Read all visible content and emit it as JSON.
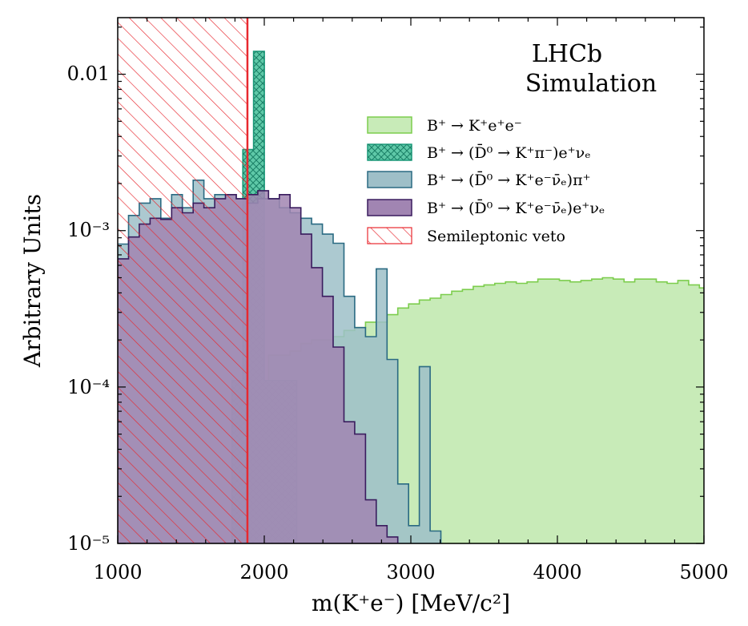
{
  "chart_data": {
    "type": "histogram",
    "xlabel": "m(K⁺e⁻) [MeV/c²]",
    "ylabel": "Arbitrary Units",
    "xlim": [
      1000,
      5000
    ],
    "ylim": [
      1e-05,
      0.023
    ],
    "yscale": "log",
    "x_ticks": [
      1000,
      2000,
      3000,
      4000,
      5000
    ],
    "x_tick_labels": [
      "1000",
      "2000",
      "3000",
      "4000",
      "5000"
    ],
    "y_ticks": [
      1e-05,
      0.0001,
      0.001,
      0.01
    ],
    "y_tick_labels": [
      "10⁻⁵",
      "10⁻⁴",
      "10⁻³",
      "0.01"
    ],
    "annotations": [
      "LHCb",
      "Simulation"
    ],
    "legend_position": "upper right",
    "bin_width": 73.5,
    "series": [
      {
        "name": "B⁺ → K⁺e⁺e⁻",
        "color": "#7ccd4d",
        "fill": "#c8ebb8",
        "bin_start": 1000,
        "values": [
          1e-05,
          1e-05,
          1e-05,
          1e-05,
          1e-05,
          1e-05,
          1e-05,
          1e-05,
          1e-05,
          1e-05,
          1e-05,
          1e-05,
          1e-05,
          1e-05,
          0.00016,
          0.00016,
          0.00017,
          0.00019,
          0.0002,
          0.0002,
          0.00021,
          0.00023,
          0.00024,
          0.00026,
          0.00026,
          0.00029,
          0.00032,
          0.00034,
          0.00036,
          0.00037,
          0.00039,
          0.00041,
          0.00042,
          0.00044,
          0.00045,
          0.00046,
          0.00047,
          0.00046,
          0.00047,
          0.00049,
          0.00049,
          0.00048,
          0.00047,
          0.00048,
          0.00049,
          0.0005,
          0.00049,
          0.00047,
          0.00049,
          0.00049,
          0.00047,
          0.00046,
          0.00048,
          0.00045,
          0.00043,
          0.00041,
          0.00038,
          0.00034,
          0.00031,
          0.00028,
          0.00026,
          0.00023,
          0.00019,
          0.00016,
          0.00013,
          0.0001,
          7.5e-05,
          5.3e-05,
          3.4e-05,
          2.4e-05,
          1.6e-05,
          1.15e-05
        ]
      },
      {
        "name": "B⁺ → (D̄⁰ → K⁺π⁻)e⁺νₑ",
        "color": "#1a9a7a",
        "fill": "#5fc9a8",
        "bin_start": 1780,
        "values": [
          0.00011,
          0.0033,
          0.014,
          0.00011,
          0.00011,
          0.00011
        ]
      },
      {
        "name": "B⁺ → (D̄⁰ → K⁺e⁻ν̄ₑ)π⁺",
        "color": "#2a6a82",
        "fill": "#9ebfc8",
        "bin_start": 1000,
        "values": [
          0.00082,
          0.00125,
          0.0015,
          0.0016,
          0.0012,
          0.0017,
          0.0014,
          0.0021,
          0.0016,
          0.0017,
          0.0017,
          0.0016,
          0.0015,
          0.0016,
          0.0016,
          0.0014,
          0.0013,
          0.0012,
          0.0011,
          0.00095,
          0.00083,
          0.00038,
          0.00024,
          0.00021,
          0.00057,
          0.00015,
          2.4e-05,
          1.3e-05,
          0.000135,
          1.2e-05
        ]
      },
      {
        "name": "B⁺ → (D̄⁰ → K⁺e⁻ν̄ₑ)e⁺νₑ",
        "color": "#3a1c5e",
        "fill": "#a185b2",
        "bin_start": 1000,
        "values": [
          0.00066,
          0.00091,
          0.0011,
          0.0012,
          0.00118,
          0.0014,
          0.0013,
          0.0015,
          0.0014,
          0.0016,
          0.0017,
          0.0016,
          0.0017,
          0.0018,
          0.0016,
          0.0017,
          0.0014,
          0.00095,
          0.00058,
          0.00038,
          0.00018,
          6e-05,
          5e-05,
          1.9e-05,
          1.3e-05,
          1.1e-05
        ]
      }
    ],
    "veto": {
      "name": "Semileptonic veto",
      "x_min": 1000,
      "x_max": 1885,
      "color": "#e8282f"
    }
  }
}
